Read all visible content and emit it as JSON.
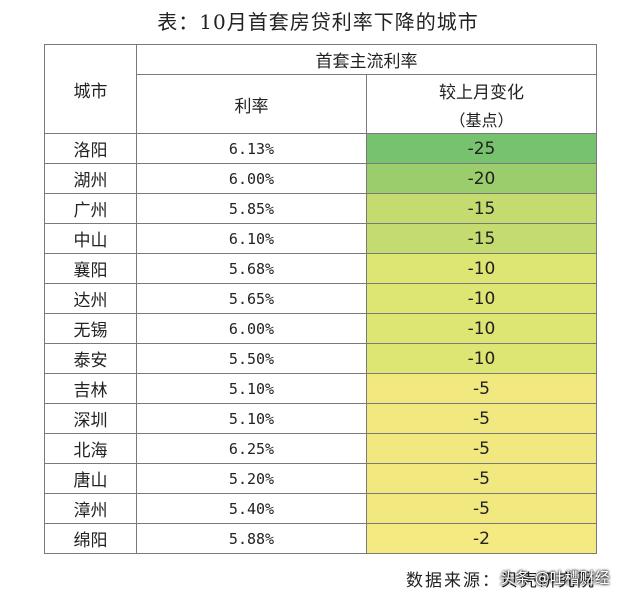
{
  "title": "表：10月首套房贷利率下降的城市",
  "table": {
    "header_city": "城市",
    "header_group": "首套主流利率",
    "header_rate": "利率",
    "header_change_line1": "较上月变化",
    "header_change_line2": "（基点）",
    "rows": [
      {
        "city": "洛阳",
        "rate": "6.13%",
        "change": "-25",
        "color": "#77c26e"
      },
      {
        "city": "湖州",
        "rate": "6.00%",
        "change": "-20",
        "color": "#9ccd6d"
      },
      {
        "city": "广州",
        "rate": "5.85%",
        "change": "-15",
        "color": "#c4dc6f"
      },
      {
        "city": "中山",
        "rate": "6.10%",
        "change": "-15",
        "color": "#c4dc6f"
      },
      {
        "city": "襄阳",
        "rate": "5.68%",
        "change": "-10",
        "color": "#dde573"
      },
      {
        "city": "达州",
        "rate": "5.65%",
        "change": "-10",
        "color": "#dde573"
      },
      {
        "city": "无锡",
        "rate": "6.00%",
        "change": "-10",
        "color": "#dde573"
      },
      {
        "city": "泰安",
        "rate": "5.50%",
        "change": "-10",
        "color": "#dde573"
      },
      {
        "city": "吉林",
        "rate": "5.10%",
        "change": "-5",
        "color": "#f1e87f"
      },
      {
        "city": "深圳",
        "rate": "5.10%",
        "change": "-5",
        "color": "#f1e87f"
      },
      {
        "city": "北海",
        "rate": "6.25%",
        "change": "-5",
        "color": "#f1e87f"
      },
      {
        "city": "唐山",
        "rate": "5.20%",
        "change": "-5",
        "color": "#f1e87f"
      },
      {
        "city": "漳州",
        "rate": "5.40%",
        "change": "-5",
        "color": "#f1e87f"
      },
      {
        "city": "绵阳",
        "rate": "5.88%",
        "change": "-2",
        "color": "#f5ea82"
      }
    ]
  },
  "source": "数据来源：贝壳研究院",
  "watermark": "头条 @吐槽财经"
}
